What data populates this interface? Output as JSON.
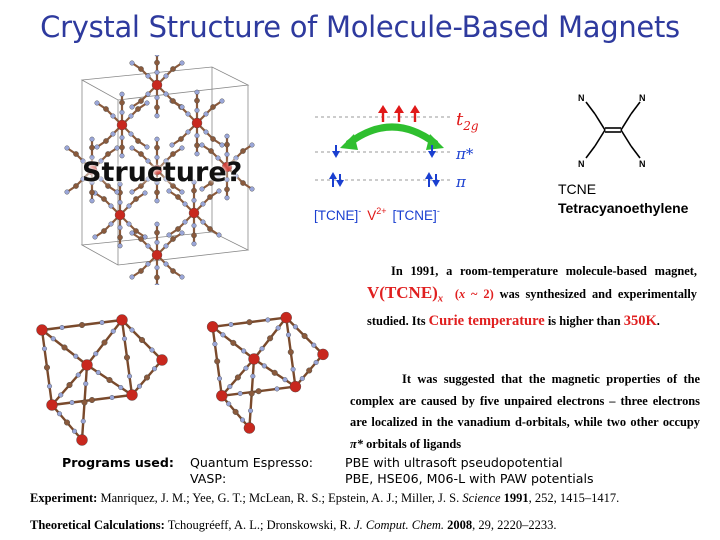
{
  "title": "Crystal Structure of Molecule-Based Magnets",
  "structure_label": "Structure?",
  "orbital_diagram": {
    "t2g_label": "t",
    "t2g_sub": "2g",
    "pistar_label": "π*",
    "pi_label": "π",
    "left_ligand": "[TCNE]",
    "left_charge": "-",
    "metal": "V",
    "metal_charge": "2+",
    "right_ligand": "[TCNE]",
    "right_charge": "-",
    "colors": {
      "electron_red": "#e01818",
      "electron_blue": "#1a3fd0",
      "arrow_green": "#2fbf2f",
      "t2g_color": "#e01818"
    }
  },
  "tcne": {
    "atom_label": "N",
    "short_name": "TCNE",
    "full_name": "Tetracyanoethylene"
  },
  "paragraph1": {
    "p1": "In 1991, a room-temperature molecule-based magnet,",
    "formula_main": "V(TCNE)",
    "formula_sub": "x",
    "formula_note_open": "(",
    "formula_note_x": "x",
    "formula_note_rest": " ~ 2)",
    "p2": "was synthesized and experimentally studied. Its",
    "curie": "Curie temperature",
    "p3": "is higher than",
    "temp": "350K",
    "p4": "."
  },
  "paragraph2": {
    "p1": "It was suggested that the magnetic properties of the complex are caused by five unpaired electrons – three electrons are localized in the vanadium d-orbitals, while two other occupy",
    "pistar": "π*",
    "p2": "orbitals of ligands"
  },
  "programs": {
    "label": "Programs used:",
    "rows": [
      {
        "name": "Quantum Espresso:",
        "desc": "PBE with ultrasoft pseudopotential"
      },
      {
        "name": "VASP:",
        "desc": "PBE, HSE06, M06-L with PAW potentials"
      }
    ]
  },
  "references": {
    "experiment": {
      "label": "Experiment:",
      "authors": "Manriquez, J. M.; Yee, G. T.; McLean, R. S.; Epstein, A. J.; Miller, J. S.",
      "journal": "Science",
      "year": "1991",
      "rest": ", 252, 1415–1417."
    },
    "theory": {
      "label": "Theoretical Calculations:",
      "authors": "Tchougréeff, A. L.; Dronskowski, R.",
      "journal": "J. Comput. Chem.",
      "year": "2008",
      "rest": ", 29, 2220–2233."
    }
  },
  "colors": {
    "title": "#2e3a9e",
    "red_text": "#e02020",
    "vanadium": "#c8281e",
    "carbon": "#8a5a3c",
    "nitrogen": "#9aa6d8"
  }
}
